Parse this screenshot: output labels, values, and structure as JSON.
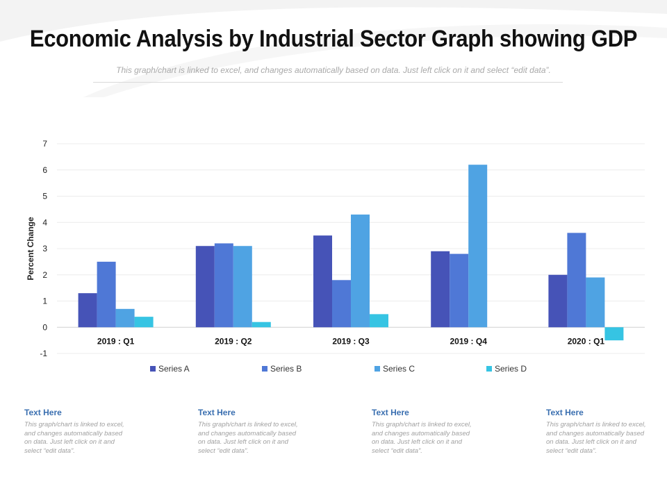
{
  "title": "Economic Analysis by Industrial Sector Graph showing GDP",
  "subtitle": "This graph/chart is linked to excel, and changes automatically based on data. Just left click on it and select “edit data”.",
  "chart_data": {
    "type": "bar",
    "categories": [
      "2019 : Q1",
      "2019 : Q2",
      "2019 : Q3",
      "2019 : Q4",
      "2020 : Q1"
    ],
    "series": [
      {
        "name": "Series A",
        "color": "#4653b7",
        "values": [
          1.3,
          3.1,
          3.5,
          2.9,
          2.0
        ]
      },
      {
        "name": "Series B",
        "color": "#4f78d6",
        "values": [
          2.5,
          3.2,
          1.8,
          2.8,
          3.6
        ]
      },
      {
        "name": "Series C",
        "color": "#4fa3e3",
        "values": [
          0.7,
          3.1,
          4.3,
          6.2,
          1.9
        ]
      },
      {
        "name": "Series D",
        "color": "#36c4e3",
        "values": [
          0.4,
          0.2,
          0.5,
          0.0,
          -0.5
        ]
      }
    ],
    "ylabel": "Percent Change",
    "ylim": [
      -1,
      7
    ],
    "yticks": [
      -1,
      0,
      1,
      2,
      3,
      4,
      5,
      6,
      7
    ],
    "grid": true,
    "legend": "bottom"
  },
  "cards": [
    {
      "title": "Text Here",
      "text": "This graph/chart is linked to excel, and changes automatically based on data. Just left click on it and select “edit data”."
    },
    {
      "title": "Text Here",
      "text": "This graph/chart is linked to excel, and changes automatically based on data. Just left click on it and select “edit data”."
    },
    {
      "title": "Text Here",
      "text": "This graph/chart is linked to excel, and changes automatically based on data. Just left click on it and select “edit data”."
    },
    {
      "title": "Text Here",
      "text": "This graph/chart is linked to excel, and changes automatically based on data. Just left click on it and select “edit data”."
    }
  ]
}
